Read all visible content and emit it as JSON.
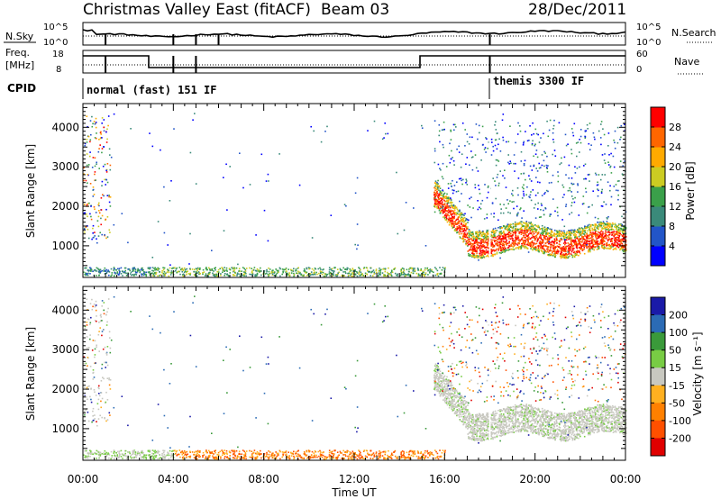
{
  "header": {
    "title": "Christmas Valley East (fitACF)",
    "beam": "Beam 03",
    "date": "28/Dec/2011"
  },
  "status_panels": {
    "nsky_label": "N.Sky",
    "nsearch_label": "N.Search",
    "nsky_ticks": [
      "10^5",
      "10^0"
    ],
    "nsearch_ticks": [
      "10^5",
      "10^0"
    ],
    "freq_label_1": "Freq.",
    "freq_label_2": "[MHz]",
    "freq_ticks": [
      "18",
      "8"
    ],
    "nave_label": "Nave",
    "nave_ticks": [
      "60",
      "0"
    ],
    "cpid_label": "CPID",
    "cpid_modes": [
      "normal (fast) 151 IF",
      "themis 3300 IF"
    ]
  },
  "chart_data": [
    {
      "type": "heatmap",
      "name": "power",
      "ylabel": "Slant Range [km]",
      "yticks": [
        "1000",
        "2000",
        "3000",
        "4000"
      ],
      "ylim": [
        200,
        4600
      ],
      "xlim": [
        0,
        24
      ],
      "colorbar_label": "Power [dB]",
      "colorbar_ticks": [
        "4",
        "8",
        "12",
        "16",
        "20",
        "24",
        "28"
      ],
      "colorbar_colors": [
        "#0000ff",
        "#2255c8",
        "#3a8a7a",
        "#3aa04a",
        "#cccc22",
        "#ffaa00",
        "#ff6600",
        "#ff0000"
      ]
    },
    {
      "type": "heatmap",
      "name": "velocity",
      "ylabel": "Slant Range [km]",
      "yticks": [
        "1000",
        "2000",
        "3000",
        "4000"
      ],
      "ylim": [
        200,
        4600
      ],
      "xlim": [
        0,
        24
      ],
      "xlabel": "Time UT",
      "xticks": [
        "00:00",
        "04:00",
        "08:00",
        "12:00",
        "16:00",
        "20:00",
        "00:00"
      ],
      "colorbar_label": "Velocity [m s⁻¹]",
      "colorbar_ticks": [
        "200",
        "100",
        "50",
        "15",
        "-15",
        "-50",
        "-100",
        "-200"
      ],
      "colorbar_colors": [
        "#1a1aa8",
        "#2b6bb5",
        "#3a9a3a",
        "#78cc44",
        "#c8c8c0",
        "#ffb020",
        "#ff8000",
        "#ff5000",
        "#e00000"
      ]
    }
  ]
}
